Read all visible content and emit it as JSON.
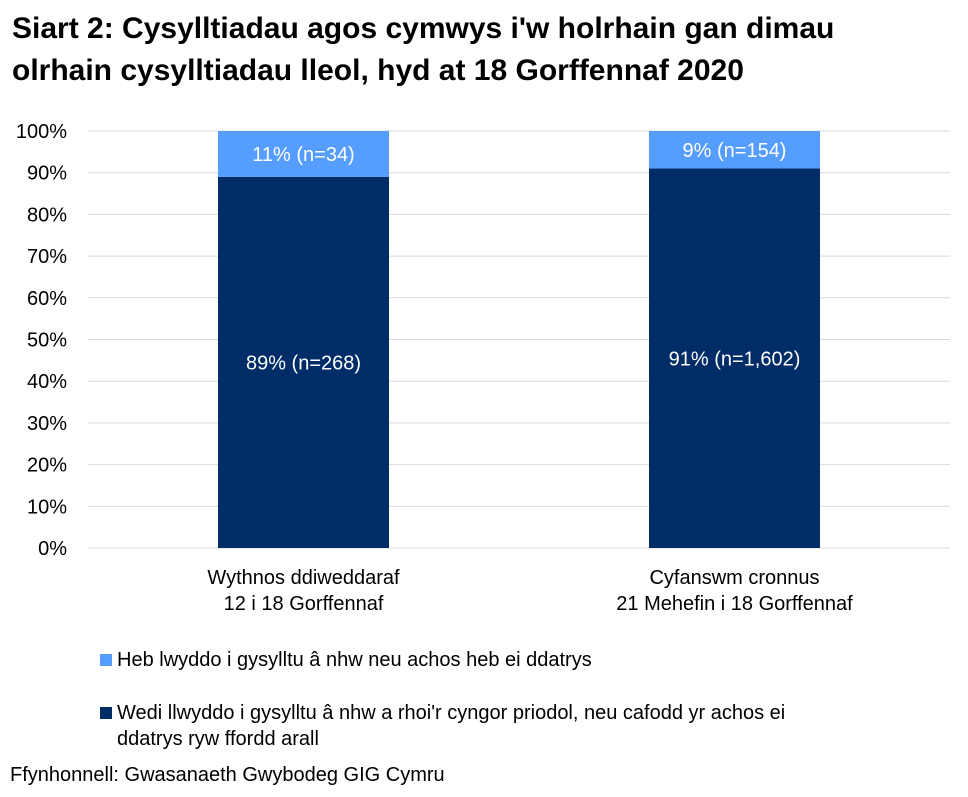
{
  "chart_data": {
    "type": "bar",
    "stacked": true,
    "title": "Siart 2: Cysylltiadau agos cymwys i'w holrhain gan dimau olrhain cysylltiadau lleol, hyd at 18 Gorffennaf 2020",
    "title_lines": [
      "Siart 2: Cysylltiadau agos cymwys i'w holrhain gan dimau",
      "olrhain cysylltiadau lleol, hyd at 18 Gorffennaf 2020"
    ],
    "categories": [
      [
        "Wythnos ddiweddaraf",
        "12 i 18 Gorffennaf"
      ],
      [
        "Cyfanswm cronnus",
        "21 Mehefin i 18 Gorffennaf"
      ]
    ],
    "ylim": [
      0,
      100
    ],
    "yticks": [
      "0%",
      "10%",
      "20%",
      "30%",
      "40%",
      "50%",
      "60%",
      "70%",
      "80%",
      "90%",
      "100%"
    ],
    "grid": true,
    "legend_position": "bottom",
    "series": [
      {
        "name": "Wedi llwyddo i gysylltu â nhw a rhoi'r cyngor priodol, neu cafodd yr achos ei ddatrys ryw ffordd arall",
        "values": [
          89,
          91
        ],
        "labels": [
          "89% (n=268)",
          "91% (n=1,602)"
        ],
        "color": "#002D68"
      },
      {
        "name": "Heb lwyddo i gysylltu â nhw neu achos heb ei ddatrys",
        "values": [
          11,
          9
        ],
        "labels": [
          "11% (n=34)",
          "9% (n=154)"
        ],
        "color": "#559DFF"
      }
    ],
    "legend": [
      {
        "lines": [
          "Heb lwyddo i gysylltu â nhw neu achos heb ei ddatrys"
        ],
        "color": "#559DFF"
      },
      {
        "lines": [
          "Wedi llwyddo i gysylltu â nhw a rhoi'r cyngor priodol, neu cafodd yr achos ei",
          "ddatrys ryw ffordd arall"
        ],
        "color": "#002D68"
      }
    ],
    "source": "Ffynhonnell: Gwasanaeth Gwybodeg GIG Cymru"
  }
}
